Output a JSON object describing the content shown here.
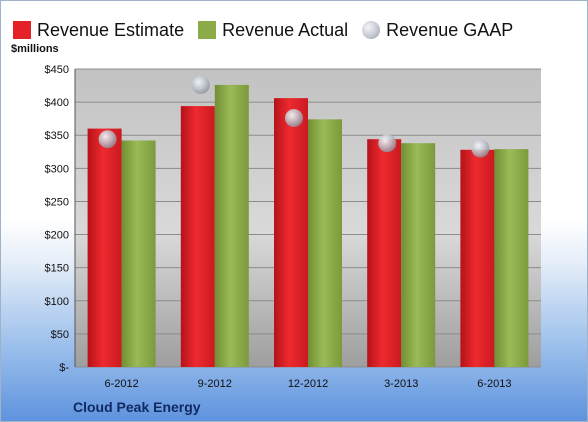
{
  "chart_data": {
    "type": "bar",
    "title": "",
    "ylabel": "$millions",
    "xlabel": "",
    "company": "Cloud Peak Energy",
    "categories": [
      "6-2012",
      "9-2012",
      "12-2012",
      "3-2013",
      "6-2013"
    ],
    "y_ticks": [
      "$-",
      "$50",
      "$100",
      "$150",
      "$200",
      "$250",
      "$300",
      "$350",
      "$400",
      "$450"
    ],
    "ylim": [
      0,
      450
    ],
    "grid": true,
    "legend": "top",
    "series": [
      {
        "name": "Revenue Estimate",
        "type": "bar",
        "color": "#e42126",
        "values": [
          360,
          394,
          406,
          344,
          328
        ]
      },
      {
        "name": "Revenue Actual",
        "type": "bar",
        "color": "#8aab47",
        "values": [
          342,
          426,
          374,
          338,
          329
        ]
      },
      {
        "name": "Revenue GAAP",
        "type": "marker",
        "color": "#b9bec8",
        "values": [
          344,
          426,
          376,
          338,
          330
        ]
      }
    ]
  }
}
